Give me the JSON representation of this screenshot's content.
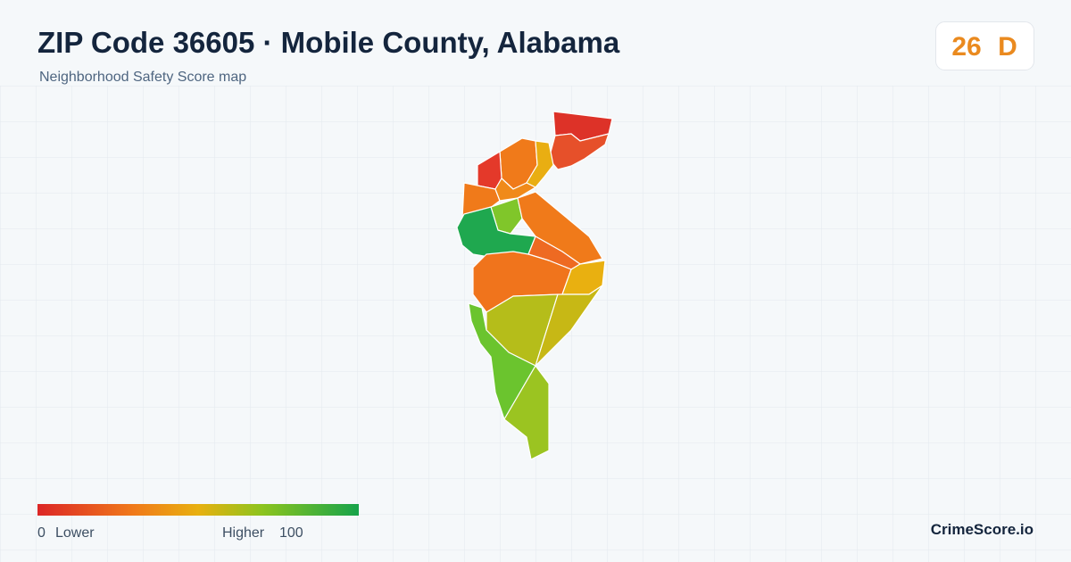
{
  "header": {
    "title": "ZIP Code 36605 · Mobile County, Alabama",
    "subtitle": "Neighborhood Safety Score map"
  },
  "score": {
    "value": "26",
    "grade": "D"
  },
  "legend": {
    "min": "0",
    "min_label": "Lower",
    "max_label": "Higher",
    "max": "100"
  },
  "brand": "CrimeScore.io"
}
